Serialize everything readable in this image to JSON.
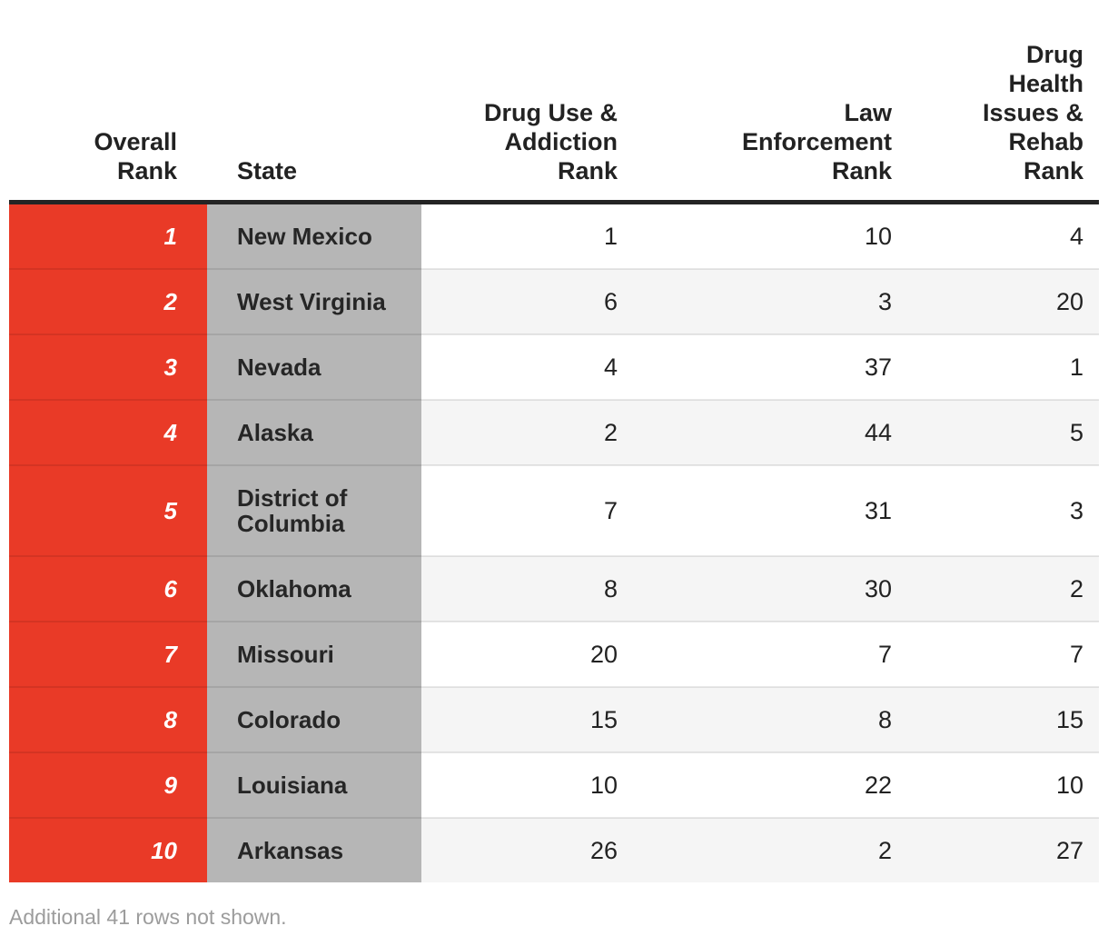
{
  "chart_data": {
    "type": "table",
    "title": "",
    "columns": [
      "Overall Rank",
      "State",
      "Drug Use & Addiction Rank",
      "Law Enforcement Rank",
      "Drug Health Issues & Rehab Rank"
    ],
    "rows": [
      {
        "overall_rank": "1",
        "state": "New Mexico",
        "drug_use_addiction_rank": "1",
        "law_enforcement_rank": "10",
        "drug_health_rehab_rank": "4"
      },
      {
        "overall_rank": "2",
        "state": "West Virginia",
        "drug_use_addiction_rank": "6",
        "law_enforcement_rank": "3",
        "drug_health_rehab_rank": "20"
      },
      {
        "overall_rank": "3",
        "state": "Nevada",
        "drug_use_addiction_rank": "4",
        "law_enforcement_rank": "37",
        "drug_health_rehab_rank": "1"
      },
      {
        "overall_rank": "4",
        "state": "Alaska",
        "drug_use_addiction_rank": "2",
        "law_enforcement_rank": "44",
        "drug_health_rehab_rank": "5"
      },
      {
        "overall_rank": "5",
        "state": "District of Columbia",
        "drug_use_addiction_rank": "7",
        "law_enforcement_rank": "31",
        "drug_health_rehab_rank": "3"
      },
      {
        "overall_rank": "6",
        "state": "Oklahoma",
        "drug_use_addiction_rank": "8",
        "law_enforcement_rank": "30",
        "drug_health_rehab_rank": "2"
      },
      {
        "overall_rank": "7",
        "state": "Missouri",
        "drug_use_addiction_rank": "20",
        "law_enforcement_rank": "7",
        "drug_health_rehab_rank": "7"
      },
      {
        "overall_rank": "8",
        "state": "Colorado",
        "drug_use_addiction_rank": "15",
        "law_enforcement_rank": "8",
        "drug_health_rehab_rank": "15"
      },
      {
        "overall_rank": "9",
        "state": "Louisiana",
        "drug_use_addiction_rank": "10",
        "law_enforcement_rank": "22",
        "drug_health_rehab_rank": "10"
      },
      {
        "overall_rank": "10",
        "state": "Arkansas",
        "drug_use_addiction_rank": "26",
        "law_enforcement_rank": "2",
        "drug_health_rehab_rank": "27"
      }
    ]
  },
  "header": {
    "overall_rank": "Overall Rank",
    "state": "State",
    "drug_use_addiction": "Drug Use & Addiction Rank",
    "law_enforcement": "Law Enforcement Rank",
    "drug_health_rehab": "Drug Health Issues & Rehab Rank"
  },
  "footer": {
    "note": "Additional 41 rows not shown."
  },
  "colors": {
    "rank_column_bg": "#E93A27",
    "state_column_bg": "#B6B6B6",
    "stripe_bg": "#F5F5F5",
    "header_border": "#242424",
    "body_text": "#222222",
    "rank_text": "#FFFFFF",
    "footer_text": "#9C9C9C"
  }
}
